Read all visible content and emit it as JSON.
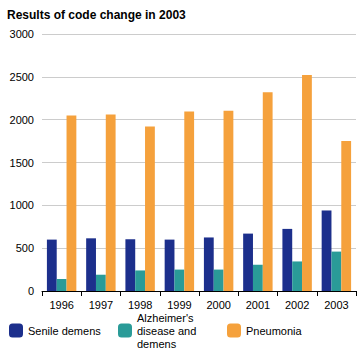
{
  "chart_data": {
    "type": "bar",
    "title": "Results of code change in 2003",
    "categories": [
      "1996",
      "1997",
      "1998",
      "1999",
      "2000",
      "2001",
      "2002",
      "2003"
    ],
    "series": [
      {
        "name": "Senile demens",
        "color": "#1c2f8c",
        "values": [
          600,
          615,
          605,
          600,
          625,
          670,
          725,
          940
        ]
      },
      {
        "name": "Alzheimer's disease and demens",
        "color": "#2a9b98",
        "values": [
          140,
          190,
          240,
          250,
          250,
          305,
          345,
          460
        ]
      },
      {
        "name": "Pneumonia",
        "color": "#f5a13c",
        "values": [
          2050,
          2060,
          1920,
          2095,
          2105,
          2320,
          2520,
          1750
        ]
      }
    ],
    "ylim": [
      0,
      3000
    ],
    "yticks": [
      0,
      500,
      1000,
      1500,
      2000,
      2500,
      3000
    ],
    "grid": true,
    "legend": "bottom"
  }
}
